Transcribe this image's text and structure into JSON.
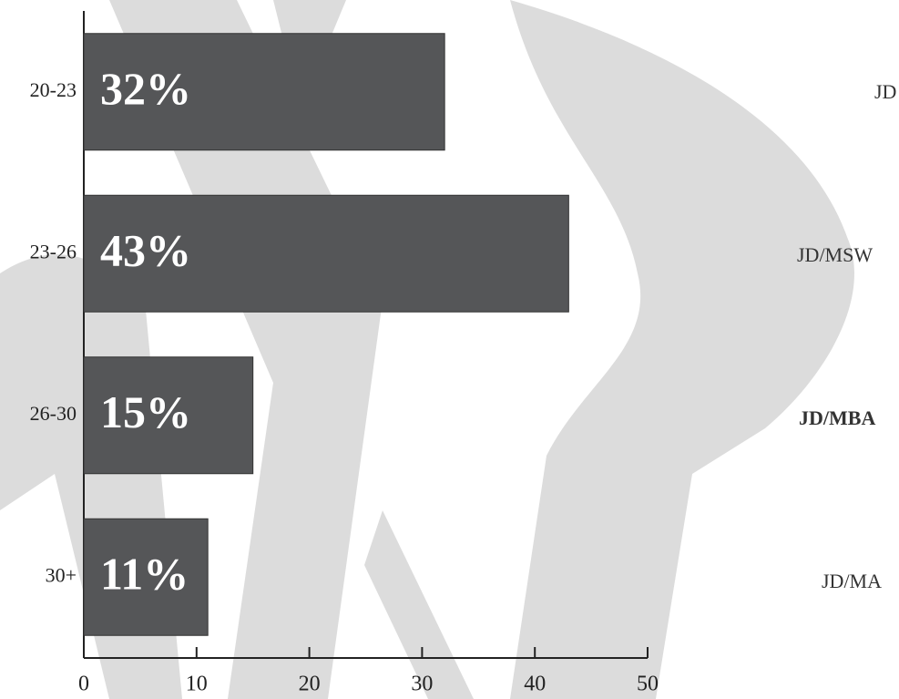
{
  "chart_data": {
    "type": "bar",
    "orientation": "horizontal",
    "categories": [
      "20-23",
      "23-26",
      "26-30",
      "30+"
    ],
    "values": [
      32,
      43,
      15,
      11
    ],
    "value_labels": [
      "32%",
      "43%",
      "15%",
      "11%"
    ],
    "color": "#555658",
    "xlim": [
      0,
      50
    ],
    "xticks": [
      0,
      10,
      20,
      30,
      40,
      50
    ]
  },
  "partial_labels": [
    "JD",
    "JD/MSW",
    "JD/MBA",
    "JD/MA"
  ]
}
